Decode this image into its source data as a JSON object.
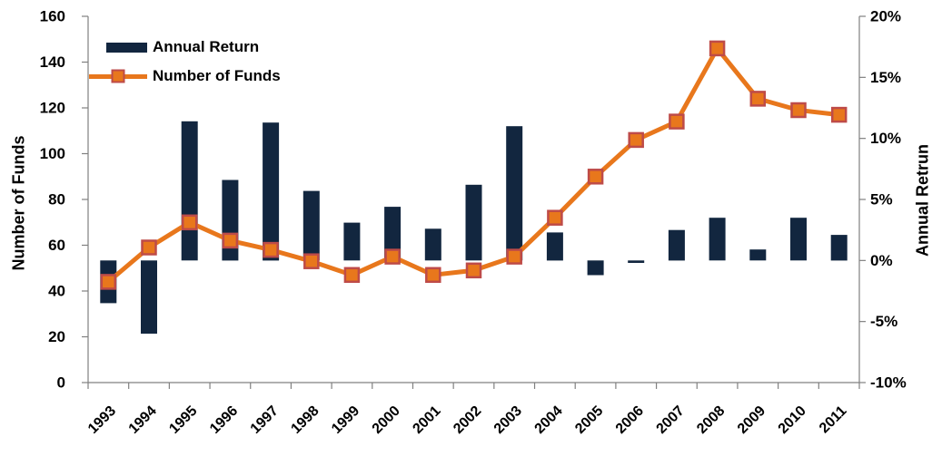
{
  "chart_data": {
    "type": "combo",
    "categories": [
      "1993",
      "1994",
      "1995",
      "1996",
      "1997",
      "1998",
      "1999",
      "2000",
      "2001",
      "2002",
      "2003",
      "2004",
      "2005",
      "2006",
      "2007",
      "2008",
      "2009",
      "2010",
      "2011"
    ],
    "series": [
      {
        "name": "Annual Return",
        "type": "bar",
        "axis": "right",
        "unit": "percent",
        "values": [
          -3.5,
          -6.0,
          11.4,
          6.6,
          11.3,
          5.7,
          3.1,
          4.4,
          2.6,
          6.2,
          11.0,
          2.3,
          -1.2,
          -0.2,
          2.5,
          3.5,
          0.9,
          3.5,
          2.1
        ]
      },
      {
        "name": "Number of Funds",
        "type": "line",
        "axis": "left",
        "values": [
          44,
          59,
          70,
          62,
          58,
          53,
          47,
          55,
          47,
          49,
          55,
          72,
          90,
          106,
          114,
          146,
          124,
          119,
          117
        ]
      }
    ],
    "left_axis": {
      "title": "Number of Funds",
      "min": 0,
      "max": 160,
      "step": 20,
      "ticks": [
        {
          "value": 0,
          "label": "0"
        },
        {
          "value": 20,
          "label": "20"
        },
        {
          "value": 40,
          "label": "40"
        },
        {
          "value": 60,
          "label": "60"
        },
        {
          "value": 80,
          "label": "80"
        },
        {
          "value": 100,
          "label": "100"
        },
        {
          "value": 120,
          "label": "120"
        },
        {
          "value": 140,
          "label": "140"
        },
        {
          "value": 160,
          "label": "160"
        }
      ]
    },
    "right_axis": {
      "title": "Annual Retrun",
      "min": -10,
      "max": 20,
      "step": 5,
      "ticks": [
        {
          "value": -10,
          "label": "-10%"
        },
        {
          "value": -5,
          "label": "-5%"
        },
        {
          "value": 0,
          "label": "0%"
        },
        {
          "value": 5,
          "label": "5%"
        },
        {
          "value": 10,
          "label": "10%"
        },
        {
          "value": 15,
          "label": "15%"
        },
        {
          "value": 20,
          "label": "20%"
        }
      ]
    },
    "legend": {
      "position": "top-left",
      "items": [
        "Annual Return",
        "Number of Funds"
      ]
    },
    "grid": false,
    "background": "#FFFFFF",
    "colors": {
      "bar": "#12263F",
      "line": "#E8771C",
      "marker_fill": "#E8771C",
      "marker_border": "#BE4B48",
      "axis": "#808080",
      "text": "#000000"
    }
  }
}
